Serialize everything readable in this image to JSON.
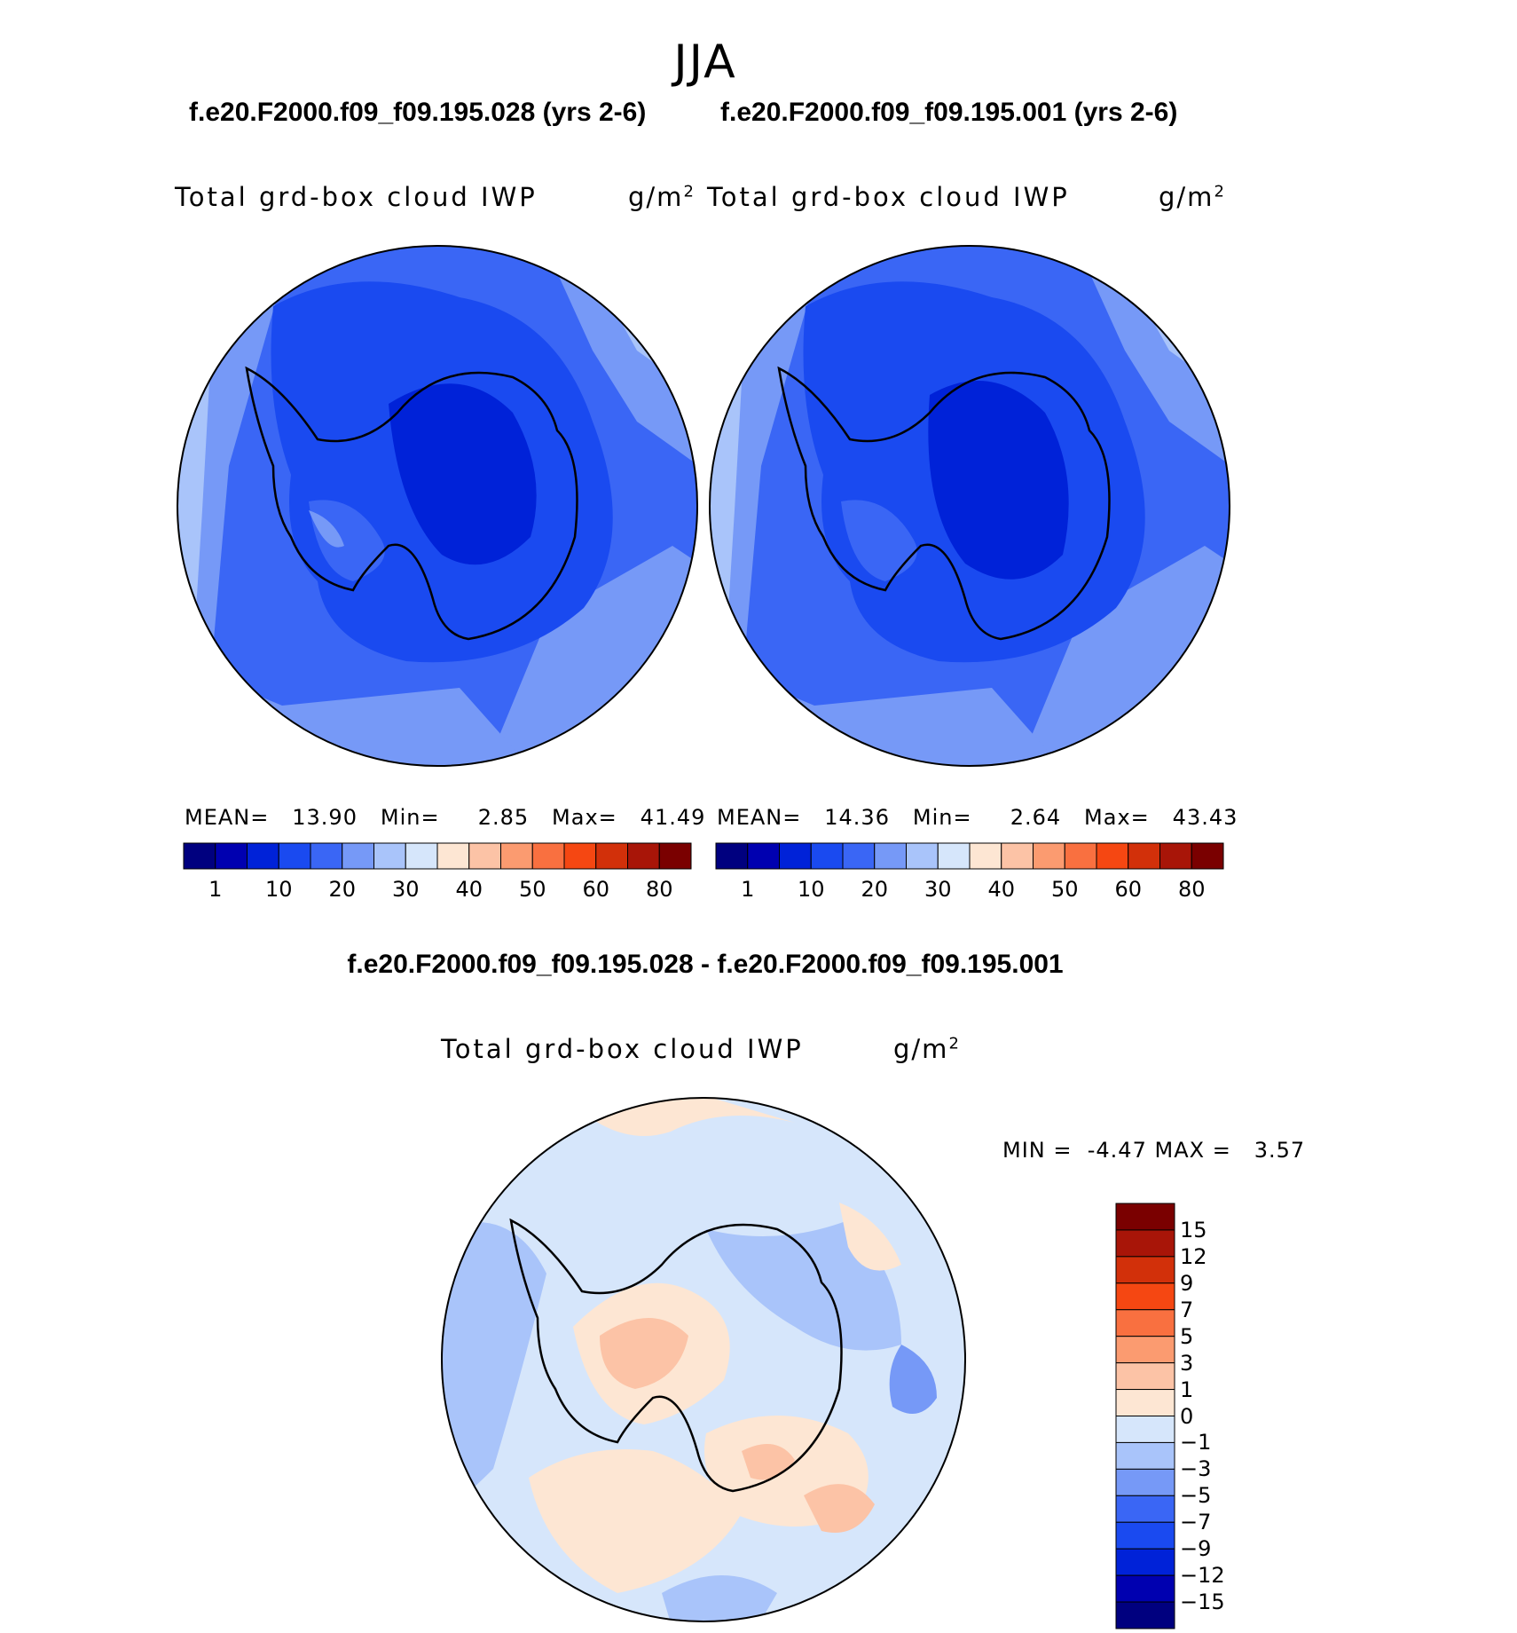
{
  "season": "JJA",
  "panels": [
    {
      "case_title": "f.e20.F2000.f09_f09.195.028 (yrs 2-6)",
      "variable": "Total grd-box cloud IWP",
      "units": "g/m",
      "units_exp": "2",
      "stats": {
        "mean_label": "MEAN=",
        "mean": "13.90",
        "min_label": "Min=",
        "min": "2.85",
        "max_label": "Max=",
        "max": "41.49"
      }
    },
    {
      "case_title": "f.e20.F2000.f09_f09.195.001 (yrs 2-6)",
      "variable": "Total grd-box cloud IWP",
      "units": "g/m",
      "units_exp": "2",
      "stats": {
        "mean_label": "MEAN=",
        "mean": "14.36",
        "min_label": "Min=",
        "min": "2.64",
        "max_label": "Max=",
        "max": "43.43"
      }
    }
  ],
  "abs_colorbar": {
    "colors": [
      "#00007f",
      "#0000b0",
      "#0022d8",
      "#1a4af0",
      "#3a66f5",
      "#7699f7",
      "#a9c4fa",
      "#d6e6fb",
      "#fde6d3",
      "#fcc3a6",
      "#fb9b70",
      "#f97040",
      "#f54712",
      "#d2300a",
      "#a81508",
      "#7a0000"
    ],
    "labels": [
      "1",
      "10",
      "20",
      "30",
      "40",
      "50",
      "60",
      "80"
    ]
  },
  "difference": {
    "title": "f.e20.F2000.f09_f09.195.028 - f.e20.F2000.f09_f09.195.001",
    "variable": "Total grd-box cloud IWP",
    "units": "g/m",
    "units_exp": "2",
    "min_label": "MIN =",
    "min": "-4.47",
    "max_label": "MAX =",
    "max": "3.57",
    "colorbar": {
      "colors": [
        "#7a0000",
        "#a81508",
        "#d2300a",
        "#f54712",
        "#f97040",
        "#fb9b70",
        "#fcc3a6",
        "#fde6d3",
        "#d6e6fb",
        "#a9c4fa",
        "#7699f7",
        "#3a66f5",
        "#1a4af0",
        "#0022d8",
        "#0000b0",
        "#00007f"
      ],
      "labels": [
        "15",
        "12",
        "9",
        "7",
        "5",
        "3",
        "1",
        "0",
        "−1",
        "−3",
        "−5",
        "−7",
        "−9",
        "−12",
        "−15"
      ]
    }
  }
}
